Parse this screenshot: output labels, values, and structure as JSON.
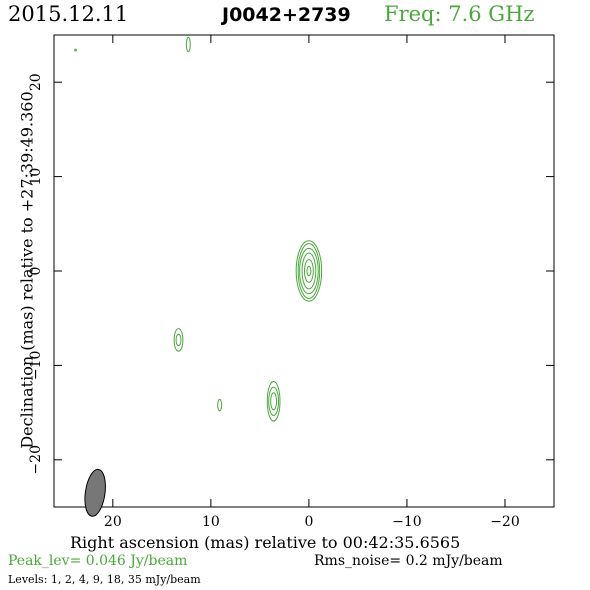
{
  "header": {
    "date": "2015.12.11",
    "source": "J0042+2739",
    "frequency": "Freq: 7.6 GHz"
  },
  "footer": {
    "peak": "Peak_lev=  0.046 Jy/beam",
    "rms": "Rms_noise=  0.2 mJy/beam",
    "levels": "Levels:   1,   2,   4,   9,  18,  35 mJy/beam"
  },
  "colors": {
    "contour": "#4aa83a",
    "beam": "#777777"
  },
  "chart_data": {
    "type": "contour",
    "title": "J0042+2739",
    "xlabel": "Right ascension (mas) relative to 00:42:35.6565",
    "ylabel": "Declination (mas) relative to +27:39:49.360",
    "xlim": [
      26,
      -25
    ],
    "ylim": [
      -25,
      25
    ],
    "x_ticks": [
      20,
      10,
      0,
      -10,
      -20
    ],
    "x_tick_labels": [
      "20",
      "10",
      "0",
      "−10",
      "−20"
    ],
    "y_ticks": [
      20,
      10,
      0,
      -10,
      -20
    ],
    "y_tick_labels": [
      "20",
      "10",
      "0",
      "−10",
      "−20"
    ],
    "contour_levels_mJy_per_beam": [
      1,
      2,
      4,
      9,
      18,
      35
    ],
    "peak_Jy_per_beam": 0.046,
    "rms_noise_mJy_per_beam": 0.2,
    "components": [
      {
        "x": 0.0,
        "y": 0.0,
        "contours": [
          [
            0.2,
            0.5
          ],
          [
            0.45,
            1.2
          ],
          [
            0.7,
            1.9
          ],
          [
            0.95,
            2.4
          ],
          [
            1.1,
            2.9
          ],
          [
            1.3,
            3.2
          ]
        ]
      },
      {
        "x": 3.6,
        "y": -13.8,
        "contours": [
          [
            0.3,
            0.9
          ],
          [
            0.5,
            1.5
          ],
          [
            0.65,
            2.1
          ]
        ]
      },
      {
        "x": 13.3,
        "y": -7.3,
        "contours": [
          [
            0.25,
            0.6
          ],
          [
            0.45,
            1.2
          ]
        ]
      },
      {
        "x": 9.1,
        "y": -14.2,
        "contours": [
          [
            0.2,
            0.6
          ]
        ]
      },
      {
        "x": 12.3,
        "y": 24.0,
        "contours": [
          [
            0.2,
            0.75
          ]
        ]
      },
      {
        "x": 23.8,
        "y": 23.4,
        "contours": [
          [
            0.08,
            0.1
          ]
        ]
      }
    ],
    "beam": {
      "x": 21.8,
      "y": -23.5,
      "width": 1.0,
      "height": 2.5
    }
  }
}
